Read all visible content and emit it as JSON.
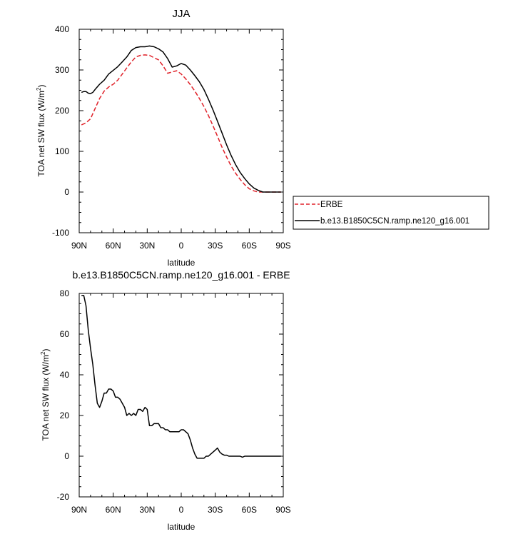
{
  "chart_data": [
    {
      "type": "line",
      "title": "JJA",
      "xlabel": "latitude",
      "ylabel": "TOA net SW flux (W/m",
      "ylabel_sup": "2",
      "ylabel_close": ")",
      "xlim": [
        90,
        -90
      ],
      "ylim": [
        -100,
        400
      ],
      "x_ticks": [
        {
          "value": 90,
          "label": "90N"
        },
        {
          "value": 60,
          "label": "60N"
        },
        {
          "value": 30,
          "label": "30N"
        },
        {
          "value": 0,
          "label": "0"
        },
        {
          "value": -30,
          "label": "30S"
        },
        {
          "value": -60,
          "label": "60S"
        },
        {
          "value": -90,
          "label": "90S"
        }
      ],
      "y_ticks": [
        {
          "value": -100,
          "label": "-100"
        },
        {
          "value": 0,
          "label": "0"
        },
        {
          "value": 100,
          "label": "100"
        },
        {
          "value": 200,
          "label": "200"
        },
        {
          "value": 300,
          "label": "300"
        },
        {
          "value": 400,
          "label": "400"
        }
      ],
      "legend": {
        "position": "right",
        "entries": [
          {
            "label": "ERBE",
            "color": "#e0222a",
            "dash": true
          },
          {
            "label": "b.e13.B1850C5CN.ramp.ne120_g16.001",
            "color": "#000000",
            "dash": false
          }
        ]
      },
      "series": [
        {
          "name": "ERBE",
          "color": "#e0222a",
          "dash": true,
          "x": [
            88,
            84,
            80,
            76,
            72,
            68,
            64,
            60,
            56,
            52,
            48,
            44,
            40,
            36,
            32,
            28,
            24,
            20,
            16,
            12,
            8,
            4,
            0,
            -4,
            -8,
            -12,
            -16,
            -20,
            -24,
            -28,
            -32,
            -36,
            -40,
            -44,
            -48,
            -52,
            -56,
            -60,
            -64,
            -68,
            -72,
            -76,
            -80,
            -84,
            -88
          ],
          "values": [
            165,
            170,
            180,
            205,
            230,
            248,
            258,
            265,
            275,
            290,
            305,
            320,
            332,
            336,
            337,
            336,
            330,
            325,
            310,
            292,
            295,
            298,
            290,
            278,
            264,
            248,
            230,
            210,
            188,
            163,
            137,
            110,
            86,
            64,
            46,
            31,
            18,
            8,
            3,
            0,
            0,
            0,
            0,
            0,
            0
          ]
        },
        {
          "name": "b.e13.B1850C5CN.ramp.ne120_g16.001",
          "color": "#000000",
          "dash": false,
          "x": [
            88,
            86,
            84,
            82,
            80,
            78,
            76,
            72,
            68,
            64,
            60,
            56,
            52,
            48,
            44,
            40,
            36,
            32,
            28,
            24,
            20,
            16,
            12,
            8,
            4,
            0,
            -4,
            -8,
            -12,
            -16,
            -20,
            -24,
            -28,
            -32,
            -36,
            -40,
            -44,
            -48,
            -52,
            -56,
            -60,
            -64,
            -68,
            -72,
            -76,
            -80,
            -84,
            -88
          ],
          "values": [
            245,
            247,
            247,
            243,
            242,
            245,
            252,
            265,
            275,
            290,
            299,
            308,
            320,
            332,
            348,
            355,
            357,
            357,
            359,
            357,
            352,
            344,
            328,
            307,
            310,
            316,
            312,
            300,
            286,
            271,
            252,
            228,
            202,
            174,
            145,
            116,
            90,
            67,
            48,
            33,
            20,
            10,
            4,
            0,
            0,
            0,
            0,
            0
          ]
        }
      ]
    },
    {
      "type": "line",
      "title": "b.e13.B1850C5CN.ramp.ne120_g16.001 - ERBE",
      "xlabel": "latitude",
      "ylabel": "TOA net SW flux (W/m",
      "ylabel_sup": "2",
      "ylabel_close": ")",
      "xlim": [
        90,
        -90
      ],
      "ylim": [
        -20,
        80
      ],
      "x_ticks": [
        {
          "value": 90,
          "label": "90N"
        },
        {
          "value": 60,
          "label": "60N"
        },
        {
          "value": 30,
          "label": "30N"
        },
        {
          "value": 0,
          "label": "0"
        },
        {
          "value": -30,
          "label": "30S"
        },
        {
          "value": -60,
          "label": "60S"
        },
        {
          "value": -90,
          "label": "90S"
        }
      ],
      "y_ticks": [
        {
          "value": -20,
          "label": "-20"
        },
        {
          "value": 0,
          "label": "0"
        },
        {
          "value": 20,
          "label": "20"
        },
        {
          "value": 40,
          "label": "40"
        },
        {
          "value": 60,
          "label": "60"
        },
        {
          "value": 80,
          "label": "80"
        }
      ],
      "series": [
        {
          "name": "b.e13.B1850C5CN.ramp.ne120_g16.001 - ERBE",
          "color": "#000000",
          "dash": false,
          "x": [
            88,
            86,
            84,
            82,
            80,
            78,
            76,
            74,
            72,
            70,
            68,
            66,
            64,
            62,
            60,
            58,
            56,
            54,
            52,
            50,
            48,
            46,
            44,
            42,
            40,
            38,
            36,
            34,
            32,
            30,
            28,
            26,
            24,
            22,
            20,
            18,
            16,
            14,
            12,
            10,
            8,
            6,
            4,
            2,
            0,
            -2,
            -4,
            -6,
            -8,
            -10,
            -12,
            -14,
            -16,
            -18,
            -20,
            -22,
            -24,
            -26,
            -28,
            -30,
            -32,
            -34,
            -36,
            -38,
            -40,
            -42,
            -44,
            -46,
            -48,
            -50,
            -52,
            -54,
            -56,
            -58,
            -60,
            -62,
            -64,
            -66,
            -68,
            -70,
            -72,
            -74,
            -76,
            -78,
            -80,
            -82,
            -84,
            -86,
            -88
          ],
          "values": [
            79,
            79,
            74,
            62,
            53,
            45,
            35,
            26,
            24,
            27,
            31,
            31,
            33,
            33,
            32,
            29,
            29,
            28,
            26,
            24,
            20,
            21,
            20,
            21,
            20,
            23,
            23,
            22,
            24,
            23,
            15,
            15,
            16,
            16,
            16,
            14,
            14,
            13,
            13,
            12,
            12,
            12,
            12,
            12,
            13,
            13,
            12,
            11,
            8,
            4,
            1,
            -1,
            -1,
            -1,
            -1,
            0,
            0,
            1,
            2,
            3,
            4,
            2,
            1,
            0.5,
            0.5,
            0,
            0,
            0,
            0,
            0,
            0,
            -0.5,
            0,
            0,
            0,
            0,
            0,
            0,
            0,
            0,
            0,
            0,
            0,
            0,
            0,
            0,
            0,
            0,
            0
          ]
        }
      ]
    }
  ]
}
